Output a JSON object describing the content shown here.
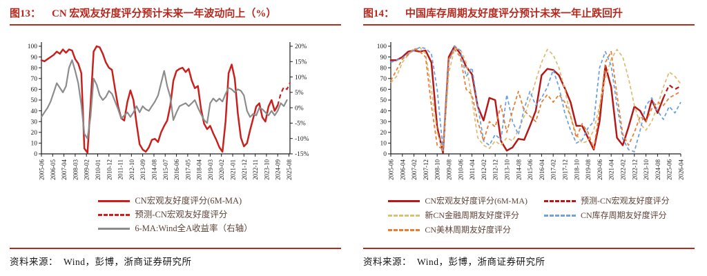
{
  "page": {
    "background": "#ffffff"
  },
  "colors": {
    "accent_red": "#b5291f",
    "legend_text": "#5f4339",
    "axis_text": "#1a1a1a",
    "macro_red": "#c9201d",
    "macro_red_dark": "#b41918",
    "gray_line": "#8c8c8c",
    "finance_tan": "#ddbe76",
    "inventory_blue": "#6ea2de",
    "merrill_orange": "#e57e38"
  },
  "figures": [
    {
      "label": "图13：",
      "title": "CN 宏观友好度评分预计未来一年波动向上（%）",
      "source_label": "资料来源：",
      "source_text": "Wind，彭博，浙商证券研究所"
    },
    {
      "label": "图14：",
      "title": "中国库存周期友好度评分预计未来一年止跌回升",
      "source_label": "资料来源：",
      "source_text": "Wind，彭博，浙商证券研究所"
    }
  ],
  "chart_data": [
    {
      "id": "figure-13",
      "type": "line",
      "title": "CN 宏观友好度评分预计未来一年波动向上（%）",
      "x_unit": "month",
      "x_max_months": 243,
      "x_tick_interval_months": 11,
      "x_tick_labels": [
        "2005-06",
        "2006-05",
        "2007-04",
        "2008-03",
        "2009-02",
        "2010-01",
        "2010-12",
        "2011-11",
        "2012-10",
        "2013-09",
        "2014-08",
        "2015-07",
        "2016-06",
        "2017-05",
        "2018-04",
        "2019-03",
        "2020-02",
        "2021-01",
        "2021-12",
        "2022-11",
        "2023-10",
        "2024-09",
        "2025-08"
      ],
      "y_left": {
        "min": 0,
        "max": 100,
        "step": 10
      },
      "y_right": {
        "min": -15,
        "max": 20,
        "step": 5,
        "suffix": "%"
      },
      "grid": false,
      "legend_position": "bottom",
      "series": [
        {
          "name": "CN宏观友好度评分(6M-MA)",
          "axis": "left",
          "line_style": "solid",
          "color": "#c9201d",
          "x_start": 0,
          "x_step": 3,
          "values": [
            87,
            86,
            88,
            90,
            92,
            95,
            93,
            97,
            94,
            97,
            96,
            88,
            84,
            75,
            5,
            1,
            45,
            95,
            100,
            99,
            93,
            85,
            80,
            78,
            60,
            44,
            33,
            31,
            48,
            59,
            50,
            28,
            9,
            4,
            2,
            6,
            13,
            14,
            11,
            20,
            26,
            31,
            45,
            68,
            77,
            79,
            80,
            76,
            79,
            68,
            61,
            63,
            42,
            28,
            23,
            26,
            19,
            13,
            6,
            2,
            30,
            75,
            83,
            70,
            38,
            15,
            7,
            10,
            22,
            33,
            44,
            47,
            34,
            30,
            44,
            50,
            40,
            45
          ]
        },
        {
          "name": "预测-CN宏观友好度评分",
          "axis": "left",
          "line_style": "dashed",
          "color": "#c9201d",
          "x_start": 231,
          "x_step": 3,
          "values": [
            45,
            56,
            62,
            60,
            66
          ]
        },
        {
          "name": "6-MA:Wind全A收益率（右轴）",
          "axis": "right",
          "line_style": "solid",
          "color": "#8c8c8c",
          "x_start": 0,
          "x_step": 3,
          "values": [
            -3,
            -1.5,
            0,
            2,
            5,
            8,
            6.5,
            5,
            7,
            13,
            15.5,
            12,
            8,
            1,
            -8.5,
            -10,
            -3,
            9.5,
            7.5,
            4,
            2.5,
            3.5,
            5.5,
            4.5,
            2,
            -0.5,
            -3.5,
            -2.5,
            -1.5,
            -3,
            -1.5,
            0.5,
            -1.5,
            0.5,
            -0.5,
            -1,
            0.5,
            2,
            4,
            8,
            12,
            7,
            3.5,
            -4,
            -1.5,
            0.5,
            1,
            1.5,
            0.5,
            1.5,
            2.5,
            0,
            -2,
            -4,
            -5,
            1.5,
            3,
            2,
            3,
            2,
            4.5,
            6.5,
            6,
            5,
            6,
            5.5,
            4,
            -1,
            -3,
            -2,
            -2.5,
            0,
            -0.5,
            -1.5,
            -2.5,
            -1,
            -2.5,
            -1,
            1.5,
            0.5,
            2.5
          ]
        }
      ]
    },
    {
      "id": "figure-14",
      "type": "line",
      "title": "中国库存周期友好度评分预计未来一年止跌回升",
      "x_unit": "month",
      "x_max_months": 250,
      "x_tick_interval_months": 10,
      "x_tick_labels": [
        "2005-06",
        "2006-04",
        "2007-02",
        "2007-12",
        "2008-10",
        "2009-08",
        "2010-06",
        "2011-04",
        "2012-02",
        "2012-12",
        "2013-10",
        "2014-08",
        "2015-06",
        "2016-04",
        "2017-02",
        "2017-12",
        "2018-10",
        "2019-08",
        "2020-06",
        "2021-04",
        "2022-02",
        "2022-12",
        "2023-10",
        "2024-08",
        "2025-06",
        "2026-04"
      ],
      "y_left": {
        "min": 0,
        "max": 100,
        "step": 10
      },
      "grid": false,
      "legend_position": "bottom",
      "series": [
        {
          "name": "CN宏观友好度评分(6M-MA)",
          "axis": "left",
          "line_style": "solid",
          "color": "#b41918",
          "x_start": 0,
          "x_step": 5,
          "values": [
            87,
            87,
            90,
            95,
            96,
            95,
            96,
            85,
            25,
            1,
            90,
            100,
            93,
            81,
            74,
            44,
            31,
            52,
            50,
            12,
            3,
            6,
            14,
            13,
            26,
            40,
            73,
            79,
            78,
            73,
            61,
            48,
            26,
            26,
            15,
            4,
            30,
            82,
            62,
            15,
            8,
            25,
            44,
            40,
            30,
            50,
            38,
            52
          ]
        },
        {
          "name": "预测-CN宏观友好度评分",
          "axis": "left",
          "line_style": "dashed",
          "color": "#b41918",
          "x_start": 235,
          "x_step": 5,
          "values": [
            52,
            64,
            60,
            63
          ]
        },
        {
          "name": "新CN金融周期友好度评分",
          "axis": "left",
          "line_style": "dashed",
          "color": "#ddbe76",
          "x_start": 0,
          "x_step": 5,
          "values": [
            66,
            72,
            85,
            92,
            97,
            99,
            93,
            60,
            20,
            3,
            75,
            98,
            97,
            85,
            50,
            15,
            8,
            5,
            12,
            8,
            15,
            12,
            22,
            35,
            50,
            68,
            85,
            97,
            92,
            80,
            60,
            35,
            18,
            10,
            12,
            22,
            45,
            70,
            88,
            97,
            90,
            70,
            45,
            28,
            22,
            30,
            45,
            62,
            76,
            72,
            65
          ]
        },
        {
          "name": "CN库存周期友好度评分",
          "axis": "left",
          "line_style": "dashed",
          "color": "#6ea2de",
          "x_start": 0,
          "x_step": 5,
          "values": [
            85,
            87,
            89,
            93,
            96,
            99,
            98,
            93,
            60,
            4,
            85,
            100,
            96,
            72,
            80,
            45,
            12,
            8,
            18,
            13,
            55,
            30,
            18,
            42,
            58,
            45,
            52,
            62,
            78,
            62,
            38,
            22,
            10,
            13,
            24,
            30,
            80,
            95,
            82,
            45,
            14,
            4,
            2,
            22,
            45,
            52,
            40,
            32,
            44,
            38,
            48
          ]
        },
        {
          "name": "CN美林周期友好度评分",
          "axis": "left",
          "line_style": "dashed",
          "color": "#e57e38",
          "x_start": 0,
          "x_step": 5,
          "values": [
            68,
            78,
            88,
            92,
            98,
            95,
            90,
            45,
            8,
            4,
            88,
            97,
            90,
            60,
            55,
            30,
            12,
            30,
            25,
            45,
            20,
            40,
            58,
            40,
            35,
            30,
            48,
            55,
            48,
            55,
            48,
            35,
            15,
            28,
            20,
            5,
            40,
            85,
            95,
            55,
            18,
            8,
            20,
            35,
            30,
            42,
            48,
            45,
            52,
            55,
            58
          ]
        }
      ]
    }
  ]
}
